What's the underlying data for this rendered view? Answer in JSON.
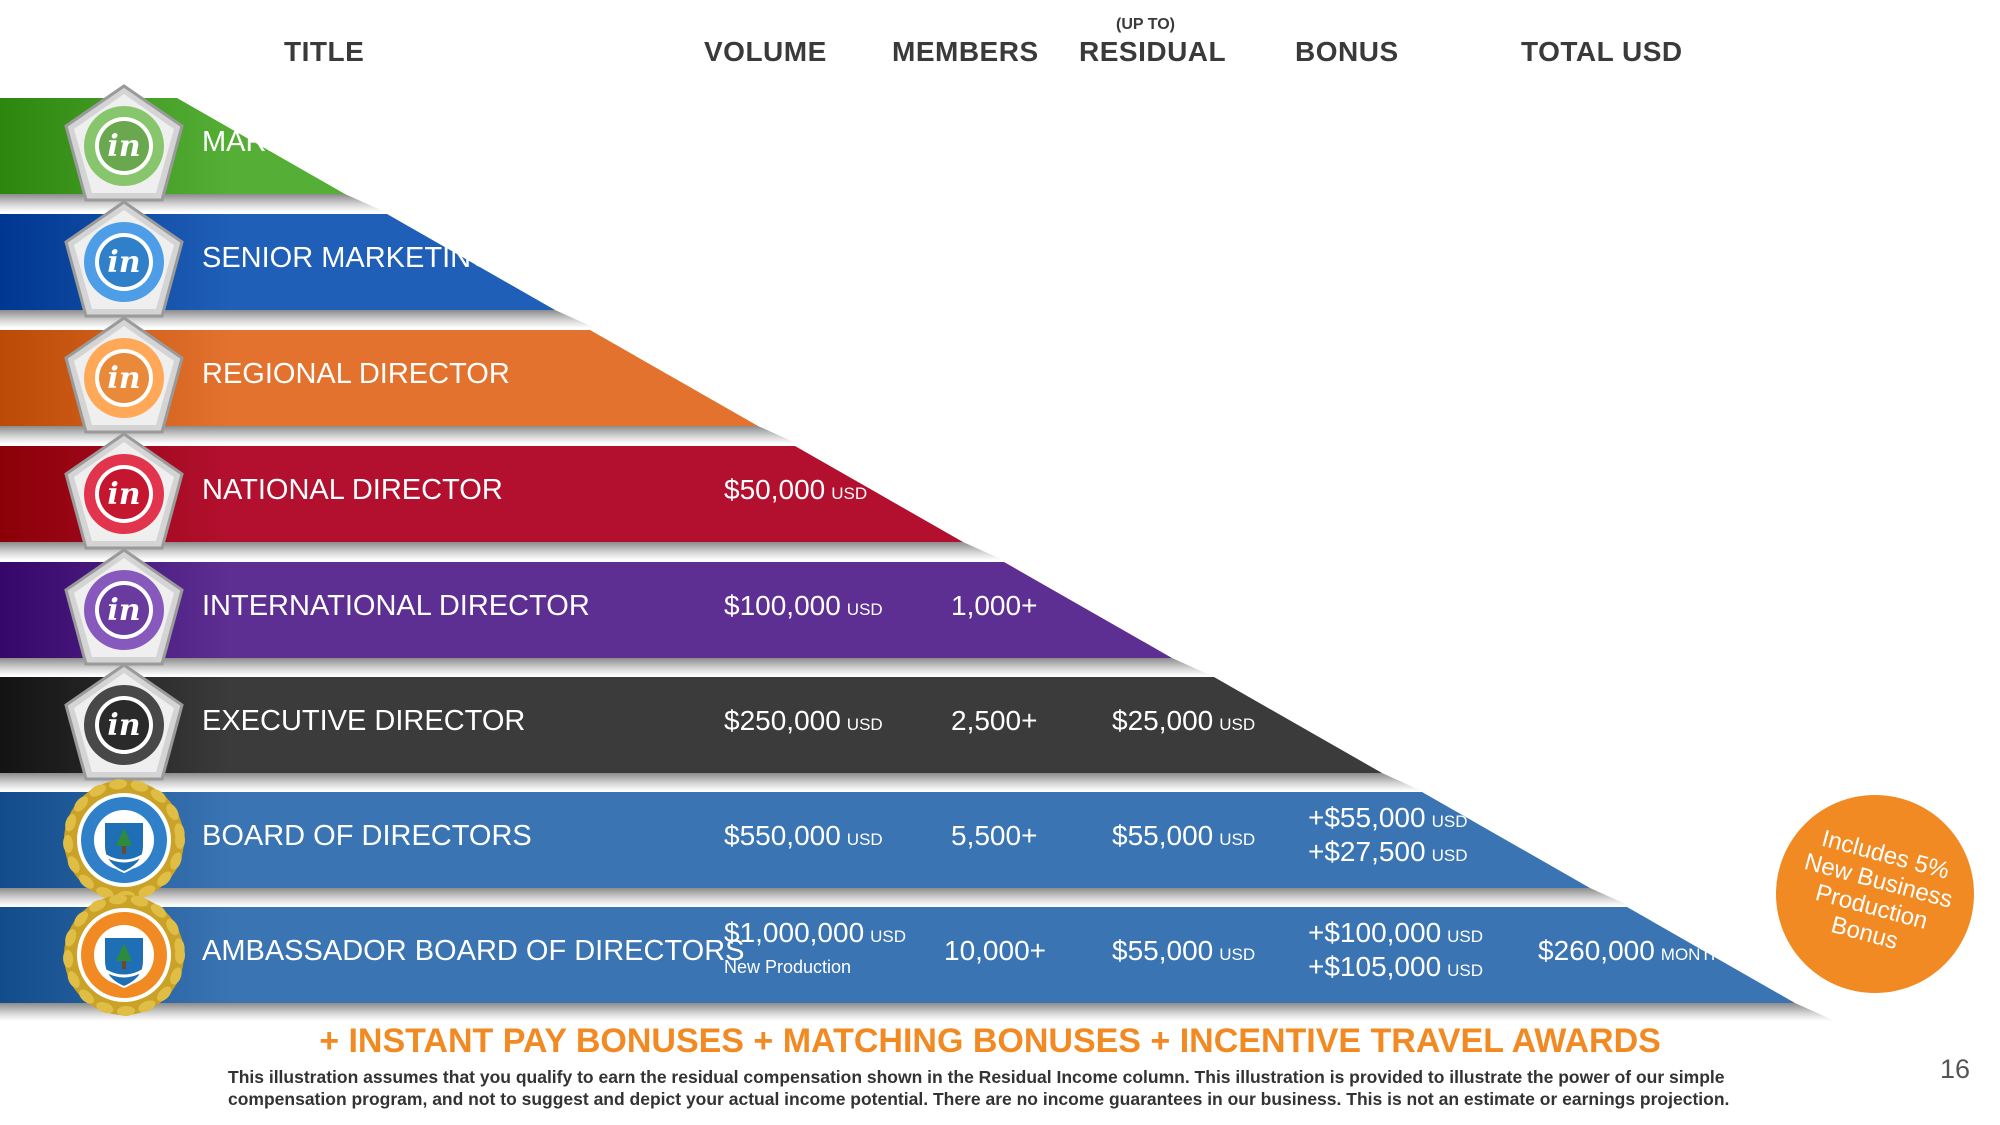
{
  "headers": {
    "title": "TITLE",
    "volume": "VOLUME",
    "members": "MEMBERS",
    "residual_prefix": "(UP TO)",
    "residual": "RESIDUAL",
    "bonus": "BONUS",
    "total": "TOTAL USD"
  },
  "colors": {
    "marketing_director": "#55ae35",
    "senior_marketing_director": "#1f5fb8",
    "regional_director": "#e2722d",
    "national_director": "#b3102f",
    "international_director": "#5e2f93",
    "executive_director": "#3b3b3c",
    "board_of_directors": "#3a74b3",
    "ambassador_board": "#3a74b3",
    "accent_orange": "#f18a22"
  },
  "ranks": [
    {
      "title": "MARKETING DIRECTOR",
      "badge_color": "#6aa84f",
      "badge_icon": "in-logo-badge"
    },
    {
      "title": "SENIOR MARKETING DIRECTOR",
      "badge_color": "#2f80c9",
      "badge_icon": "in-logo-badge"
    },
    {
      "title": "REGIONAL DIRECTOR",
      "badge_color": "#e98a3a",
      "badge_icon": "in-logo-badge"
    },
    {
      "title": "NATIONAL DIRECTOR",
      "badge_color": "#c4162f",
      "badge_icon": "in-logo-badge",
      "volume": "$50,000",
      "volume_unit": "USD"
    },
    {
      "title": "INTERNATIONAL DIRECTOR",
      "badge_color": "#6a3b9e",
      "badge_icon": "in-logo-badge",
      "volume": "$100,000",
      "volume_unit": "USD",
      "members": "1,000+"
    },
    {
      "title": "EXECUTIVE DIRECTOR",
      "badge_color": "#2a2a2a",
      "badge_icon": "in-logo-badge",
      "volume": "$250,000",
      "volume_unit": "USD",
      "members": "2,500+",
      "residual": "$25,000",
      "residual_unit": "USD"
    },
    {
      "title": "BOARD OF DIRECTORS",
      "badge_color": "#2f80c9",
      "badge_icon": "laurel-crest-badge",
      "volume": "$550,000",
      "volume_unit": "USD",
      "members": "5,500+",
      "residual": "$55,000",
      "residual_unit": "USD",
      "bonus_1": "+$55,000",
      "bonus_1_unit": "USD",
      "bonus_2": "+$27,500",
      "bonus_2_unit": "USD"
    },
    {
      "title": "AMBASSADOR BOARD OF DIRECTORS",
      "badge_color": "#f18a22",
      "badge_icon": "laurel-crest-badge",
      "volume": "$1,000,000",
      "volume_unit": "USD",
      "volume_note": "New Production",
      "members": "10,000+",
      "residual": "$55,000",
      "residual_unit": "USD",
      "bonus_1": "+$100,000",
      "bonus_1_unit": "USD",
      "bonus_2": "+$105,000",
      "bonus_2_unit": "USD",
      "total": "$260,000",
      "total_unit": "MONTH"
    }
  ],
  "promo": "Includes 5%\nNew Business\nProduction\nBonus",
  "bonus_line": "+ INSTANT PAY BONUSES + MATCHING BONUSES + INCENTIVE TRAVEL AWARDS",
  "disclaimer": "This illustration assumes that you qualify to earn the residual compensation shown in the Residual Income column. This illustration is provided to illustrate the power of our simple compensation program, and not to suggest and depict your actual income potential. There are no income guarantees in our business. This is not an estimate or earnings projection.",
  "page_number": "16"
}
